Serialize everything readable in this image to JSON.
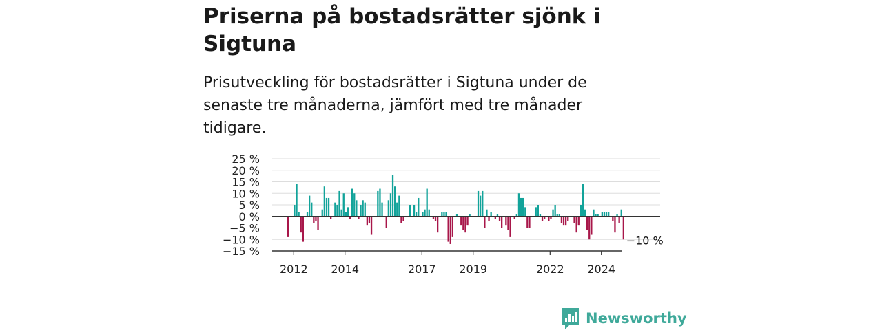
{
  "title": "Priserna på bostadsrätter sjönk i Sigtuna",
  "subtitle": "Prisutveckling för bostadsrätter i Sigtuna under de senaste tre månaderna, jämfört med tre månader tidigare.",
  "brand": {
    "name": "Newsworthy",
    "icon": "newsworthy-logo-icon"
  },
  "colors": {
    "positive": "#12a39a",
    "negative": "#a8174a",
    "axis": "#333333",
    "grid": "#dddddd"
  },
  "chart_data": {
    "type": "bar",
    "x_start": "2011-10",
    "x_step": "1 month",
    "x_ticks": [
      "2012",
      "2014",
      "2017",
      "2019",
      "2022",
      "2024"
    ],
    "x_tick_indices": [
      3,
      27,
      63,
      87,
      123,
      147
    ],
    "y_ticks": [
      "25 %",
      "20 %",
      "15 %",
      "10 %",
      "5 %",
      "0 %",
      "−5 %",
      "−10 %",
      "−15 %"
    ],
    "y_tick_values": [
      25,
      20,
      15,
      10,
      5,
      0,
      -5,
      -10,
      -15
    ],
    "ylim": [
      -15,
      25
    ],
    "grid": true,
    "unit": "%",
    "end_label": "−10 %",
    "values": [
      -9,
      0,
      0,
      5,
      14,
      2,
      -7,
      -11,
      0,
      2,
      9,
      6,
      -3,
      -2,
      -6,
      0,
      3,
      13,
      8,
      8,
      -1,
      0,
      6,
      5,
      11,
      3,
      10,
      2,
      4,
      -1,
      12,
      10,
      7,
      -1,
      5,
      7,
      6,
      -4,
      -3,
      -8,
      0,
      0,
      11,
      12,
      6,
      0,
      -5,
      7,
      10,
      18,
      13,
      6,
      9,
      -3,
      -2,
      0,
      0,
      5,
      0,
      5,
      2,
      8,
      0,
      2,
      3,
      12,
      3,
      0,
      -1,
      -2,
      -7,
      0,
      2,
      2,
      2,
      -11,
      -12,
      -9,
      0,
      1,
      0,
      -4,
      -6,
      -7,
      -4,
      1,
      0,
      0,
      0,
      11,
      9,
      11,
      -5,
      3,
      -2,
      2,
      0,
      -1,
      1,
      -2,
      -5,
      0,
      -4,
      -6,
      -9,
      0,
      -1,
      1,
      10,
      8,
      8,
      4,
      -5,
      -5,
      0,
      0,
      4,
      5,
      1,
      -2,
      -1,
      0,
      -2,
      -1,
      3,
      5,
      1,
      1,
      -3,
      -4,
      -4,
      -2,
      0,
      0,
      -3,
      -7,
      -4,
      5,
      14,
      3,
      -6,
      -10,
      -8,
      3,
      1,
      1,
      0,
      2,
      2,
      2,
      2,
      0,
      -2,
      -7,
      1,
      -3,
      3,
      -10
    ]
  }
}
